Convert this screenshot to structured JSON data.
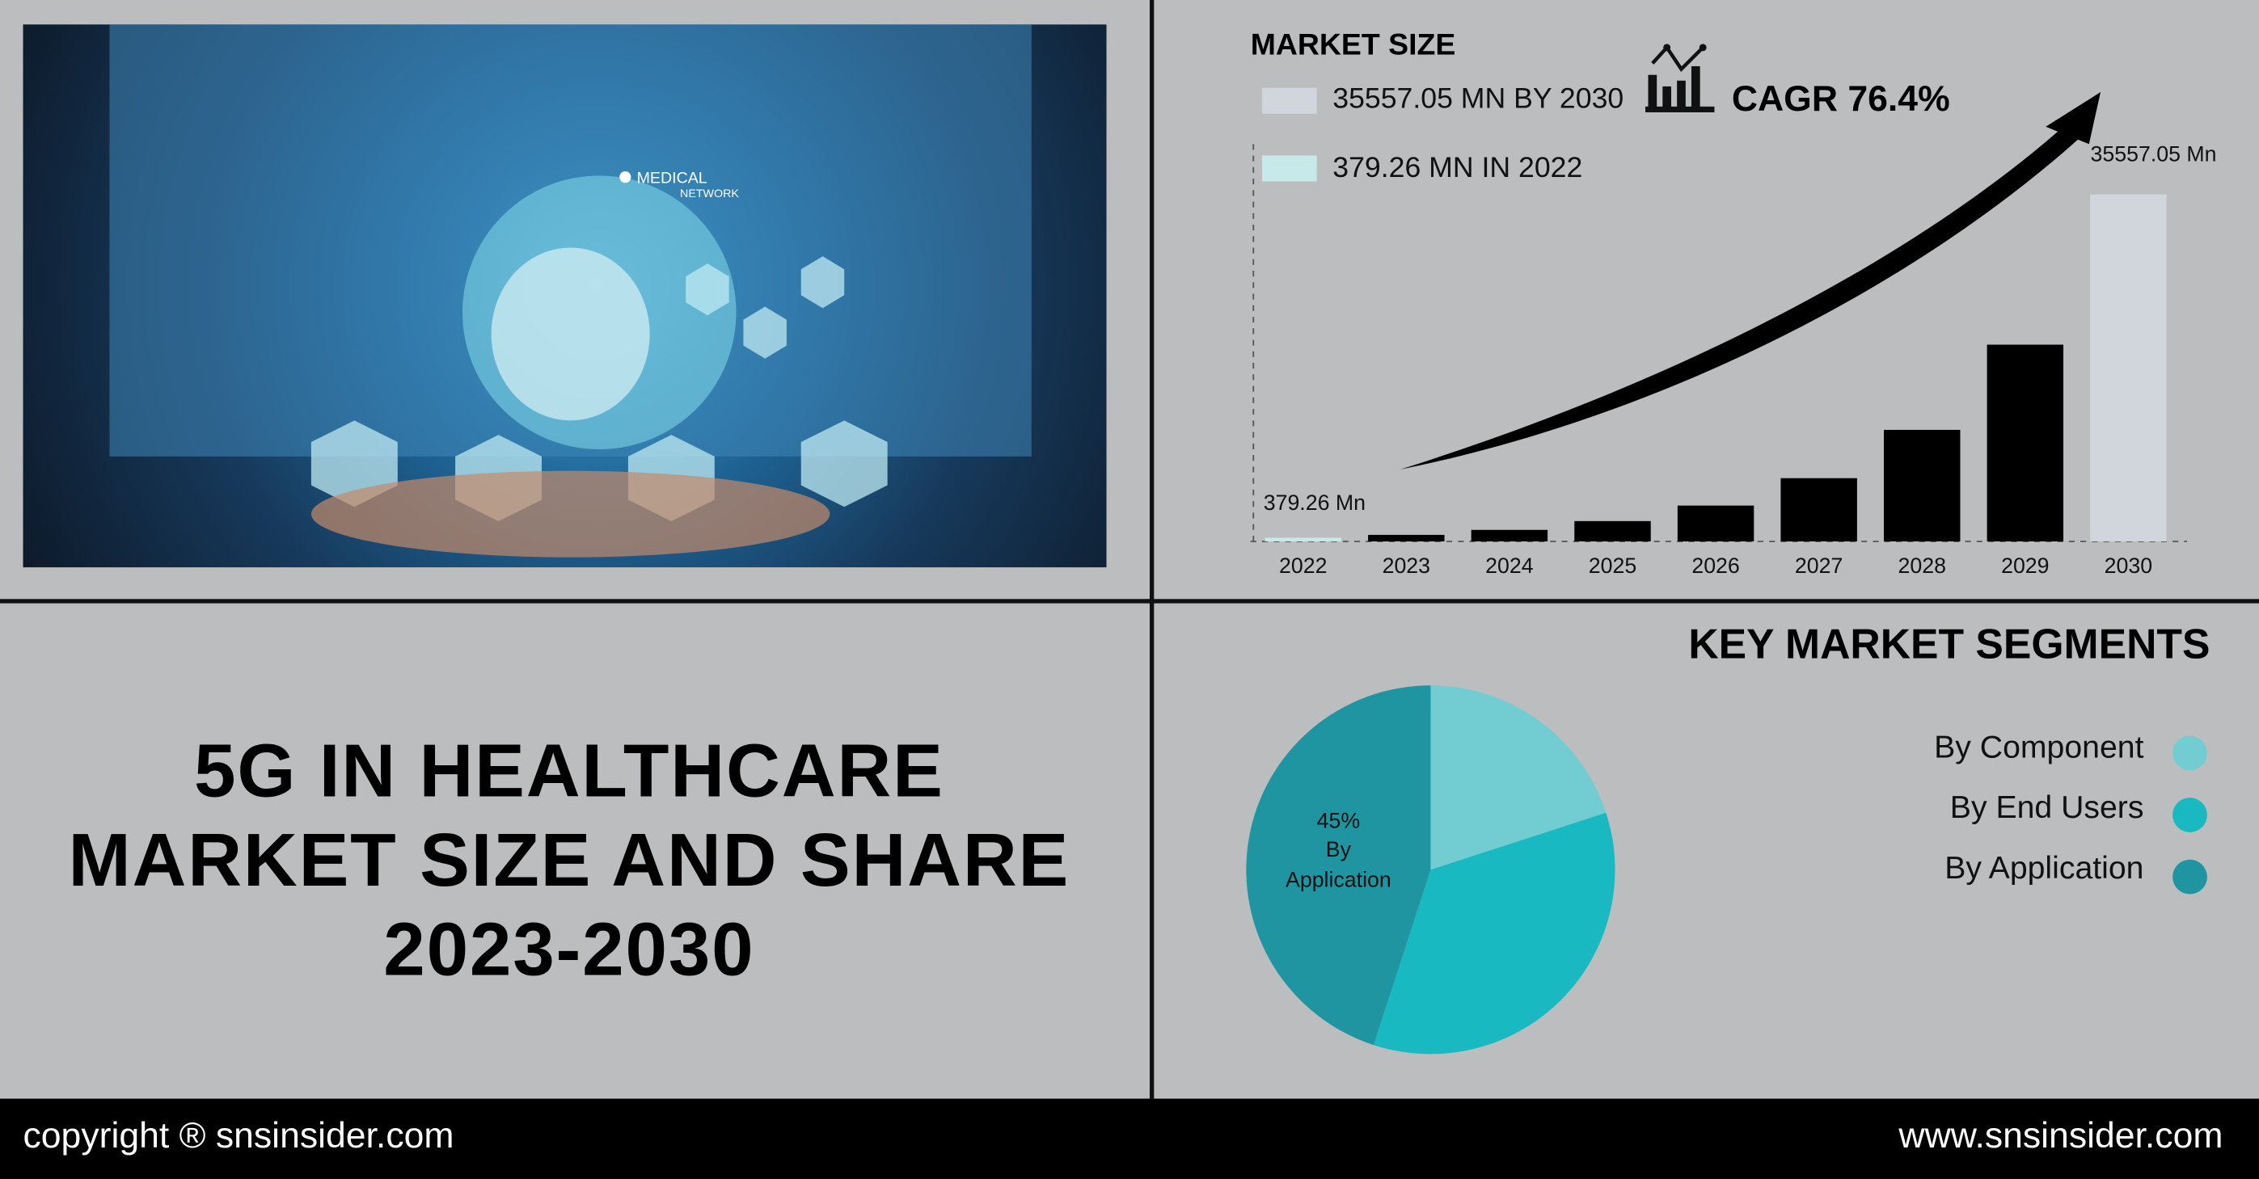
{
  "title": {
    "line1": "5G IN HEALTHCARE",
    "line2": "MARKET SIZE AND SHARE",
    "line3": "2023-2030"
  },
  "photo": {
    "caption1": "MEDICAL",
    "caption2": "NETWORK"
  },
  "market_size": {
    "heading": "MARKET SIZE",
    "legend_2030": "35557.05 MN BY 2030",
    "legend_2022": "379.26 MN IN 2022",
    "cagr": "CAGR 76.4%",
    "icon": "bar-chart-trend-icon"
  },
  "chart_data": [
    {
      "type": "bar",
      "categories": [
        "2022",
        "2023",
        "2024",
        "2025",
        "2026",
        "2027",
        "2028",
        "2029",
        "2030"
      ],
      "values": [
        379.26,
        669,
        1180,
        2082,
        3673,
        6480,
        11430,
        20160,
        35557.05
      ],
      "data_labels": {
        "first": "379.26 Mn",
        "last": "35557.05 Mn"
      },
      "colors": {
        "2022": "#c8e9ea",
        "default": "#000000",
        "2030": "#d1d6dc"
      },
      "xlabel": "",
      "ylabel": "",
      "grid": false
    },
    {
      "type": "pie",
      "title": "KEY MARKET SEGMENTS",
      "slices": [
        {
          "name": "By Component",
          "value": 20,
          "color": "#72cdd2"
        },
        {
          "name": "By End Users",
          "value": 35,
          "color": "#18b9c1"
        },
        {
          "name": "By Application",
          "value": 45,
          "color": "#2095a2"
        }
      ],
      "slice_label": {
        "value": "45%",
        "line2": "By",
        "line3": "Application"
      },
      "legend": "right"
    }
  ],
  "footer": {
    "copyright": "copyright ® snsinsider.com",
    "website": "www.snsinsider.com"
  }
}
